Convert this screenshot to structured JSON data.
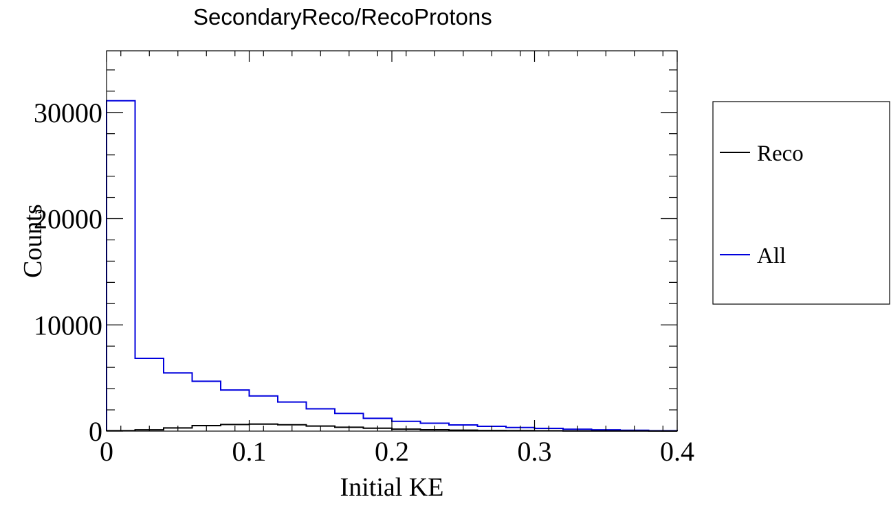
{
  "chart_data": {
    "type": "histogram",
    "title": "SecondaryReco/RecoProtons",
    "xlabel": "Initial KE",
    "ylabel": "Counts",
    "xlim": [
      0,
      0.4
    ],
    "ylim": [
      0,
      35800
    ],
    "bin_width": 0.02,
    "x_ticks": [
      {
        "value": 0,
        "label": "0"
      },
      {
        "value": 0.1,
        "label": "0.1"
      },
      {
        "value": 0.2,
        "label": "0.2"
      },
      {
        "value": 0.3,
        "label": "0.3"
      },
      {
        "value": 0.4,
        "label": "0.4"
      }
    ],
    "y_ticks": [
      {
        "value": 0,
        "label": "0"
      },
      {
        "value": 10000,
        "label": "10000"
      },
      {
        "value": 20000,
        "label": "20000"
      },
      {
        "value": 30000,
        "label": "30000"
      }
    ],
    "grid": false,
    "legend_position": "right",
    "bin_edges": [
      0,
      0.02,
      0.04,
      0.06,
      0.08,
      0.1,
      0.12,
      0.14,
      0.16,
      0.18,
      0.2,
      0.22,
      0.24,
      0.26,
      0.28,
      0.3,
      0.32,
      0.34,
      0.36,
      0.38,
      0.4
    ],
    "series": [
      {
        "name": "Reco",
        "color": "#000000",
        "values": [
          40,
          120,
          300,
          520,
          620,
          660,
          600,
          480,
          360,
          270,
          190,
          130,
          90,
          60,
          45,
          30,
          20,
          15,
          10,
          5
        ]
      },
      {
        "name": "All",
        "color": "#0000dd",
        "values": [
          31100,
          6850,
          5480,
          4690,
          3870,
          3310,
          2740,
          2100,
          1660,
          1200,
          920,
          740,
          580,
          450,
          340,
          260,
          180,
          120,
          80,
          40
        ]
      }
    ]
  }
}
